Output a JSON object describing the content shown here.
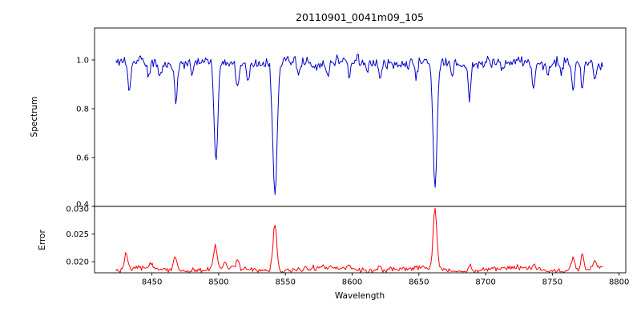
{
  "figure": {
    "background": "#ffffff",
    "frame_color": "#000000"
  },
  "chart_data": [
    {
      "type": "line",
      "series_name": "spectrum",
      "title": "20110901_0041m09_105",
      "ylabel": "Spectrum",
      "color": "#0000cc",
      "grid": false,
      "legend": false,
      "xlim": [
        8407,
        8805
      ],
      "ylim": [
        0.4,
        1.131
      ],
      "ytick_values": [
        0.4,
        0.6,
        0.8,
        1.0
      ],
      "ytick_labels": [
        "0.4",
        "0.6",
        "0.8",
        "1.0"
      ],
      "x_start": 8423,
      "x_end": 8788,
      "x_step": 0.8,
      "continuum": 0.99,
      "continuum_wiggle_amp": 0.008,
      "continuum_wiggle_period": 55,
      "noise_sigma": 0.011,
      "seed": 20110901,
      "absorption_lines": [
        {
          "center": 8433.0,
          "depth": 0.13,
          "sigma": 1.1
        },
        {
          "center": 8447.5,
          "depth": 0.06,
          "sigma": 1.0
        },
        {
          "center": 8456.0,
          "depth": 0.05,
          "sigma": 0.9
        },
        {
          "center": 8468.0,
          "depth": 0.16,
          "sigma": 1.1
        },
        {
          "center": 8480.0,
          "depth": 0.05,
          "sigma": 0.9
        },
        {
          "center": 8498.0,
          "depth": 0.42,
          "sigma": 1.4
        },
        {
          "center": 8514.0,
          "depth": 0.1,
          "sigma": 1.0
        },
        {
          "center": 8522.0,
          "depth": 0.07,
          "sigma": 0.9
        },
        {
          "center": 8542.1,
          "depth": 0.56,
          "sigma": 1.6
        },
        {
          "center": 8560.0,
          "depth": 0.05,
          "sigma": 0.9
        },
        {
          "center": 8582.0,
          "depth": 0.06,
          "sigma": 0.9
        },
        {
          "center": 8598.0,
          "depth": 0.07,
          "sigma": 0.9
        },
        {
          "center": 8611.0,
          "depth": 0.05,
          "sigma": 0.9
        },
        {
          "center": 8621.0,
          "depth": 0.08,
          "sigma": 0.9
        },
        {
          "center": 8648.0,
          "depth": 0.06,
          "sigma": 0.9
        },
        {
          "center": 8662.1,
          "depth": 0.52,
          "sigma": 1.5
        },
        {
          "center": 8675.0,
          "depth": 0.06,
          "sigma": 0.9
        },
        {
          "center": 8688.0,
          "depth": 0.13,
          "sigma": 1.0
        },
        {
          "center": 8713.0,
          "depth": 0.05,
          "sigma": 0.9
        },
        {
          "center": 8736.0,
          "depth": 0.1,
          "sigma": 1.0
        },
        {
          "center": 8747.0,
          "depth": 0.05,
          "sigma": 0.9
        },
        {
          "center": 8757.0,
          "depth": 0.06,
          "sigma": 0.9
        },
        {
          "center": 8765.5,
          "depth": 0.11,
          "sigma": 1.0
        },
        {
          "center": 8772.5,
          "depth": 0.13,
          "sigma": 1.0
        },
        {
          "center": 8782.0,
          "depth": 0.07,
          "sigma": 0.9
        }
      ]
    },
    {
      "type": "line",
      "series_name": "error",
      "ylabel": "Error",
      "xlabel": "Wavelength",
      "color": "#ff0000",
      "grid": false,
      "legend": false,
      "xlim": [
        8407,
        8805
      ],
      "ylim": [
        0.018,
        0.03
      ],
      "ytick_values": [
        0.02,
        0.025,
        0.03
      ],
      "ytick_labels": [
        "0.020",
        "0.025",
        "0.030"
      ],
      "xtick_values": [
        8450,
        8500,
        8550,
        8600,
        8650,
        8700,
        8750,
        8800
      ],
      "xtick_labels": [
        "8450",
        "8500",
        "8550",
        "8600",
        "8650",
        "8700",
        "8750",
        "8800"
      ],
      "x_start": 8423,
      "x_end": 8788,
      "x_step": 0.8,
      "baseline": 0.0186,
      "baseline_wiggle_amp": 0.0003,
      "baseline_wiggle_period": 70,
      "noise_sigma": 0.00022,
      "seed": 41,
      "peaks": [
        {
          "center": 8430.5,
          "height": 0.0028,
          "sigma": 1.2
        },
        {
          "center": 8450.0,
          "height": 0.0012,
          "sigma": 1.0
        },
        {
          "center": 8467.5,
          "height": 0.0026,
          "sigma": 1.2
        },
        {
          "center": 8497.5,
          "height": 0.004,
          "sigma": 1.4
        },
        {
          "center": 8505.0,
          "height": 0.0012,
          "sigma": 1.0
        },
        {
          "center": 8514.0,
          "height": 0.0014,
          "sigma": 1.0
        },
        {
          "center": 8542.1,
          "height": 0.0082,
          "sigma": 1.5
        },
        {
          "center": 8598.0,
          "height": 0.0007,
          "sigma": 1.0
        },
        {
          "center": 8621.0,
          "height": 0.0008,
          "sigma": 1.0
        },
        {
          "center": 8662.1,
          "height": 0.0108,
          "sigma": 1.4
        },
        {
          "center": 8688.0,
          "height": 0.0012,
          "sigma": 1.0
        },
        {
          "center": 8736.0,
          "height": 0.001,
          "sigma": 1.0
        },
        {
          "center": 8765.5,
          "height": 0.0026,
          "sigma": 1.1
        },
        {
          "center": 8772.5,
          "height": 0.003,
          "sigma": 1.1
        },
        {
          "center": 8782.0,
          "height": 0.0016,
          "sigma": 1.0
        }
      ]
    }
  ]
}
